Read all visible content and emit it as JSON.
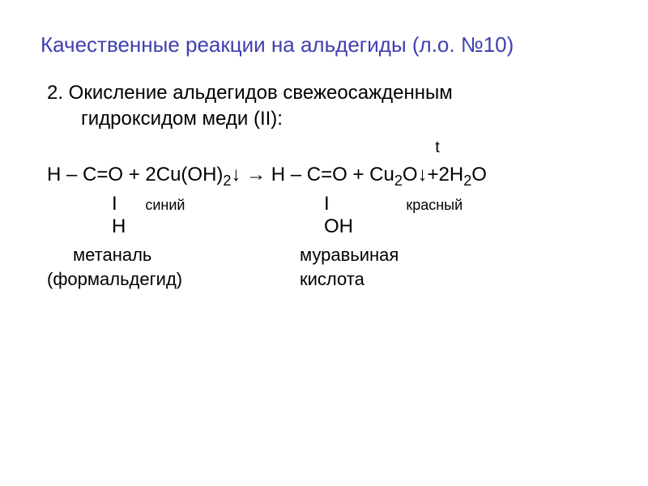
{
  "title": "Качественные реакции на альдегиды (л.о. №10)",
  "subtitle_line1": "2. Окисление альдегидов свежеосажденным",
  "subtitle_line2": "гидроксидом меди (II):",
  "temp_symbol": "t",
  "equation": {
    "reagent1_part1": "H – C=O + 2Cu(OH)",
    "reagent1_sub1": "2",
    "arrow_down1": "↓",
    "arrow": " → ",
    "product1": "H – C=O + Cu",
    "product1_sub1": "2",
    "product1_o": "O",
    "arrow_down2": "↓",
    "plus": "+2H",
    "h2o_sub": "2",
    "h2o_o": "O"
  },
  "structure_row": {
    "bond1": "I",
    "color1": "синий",
    "bond2": "I",
    "color2": "красный"
  },
  "bottom_row": {
    "h": "H",
    "oh": "OH"
  },
  "names": {
    "name1a": "метаналь",
    "name1b": "муравьиная",
    "name2a": "(формальдегид)",
    "name2b": "кислота"
  },
  "colors": {
    "title_color": "#4040b0",
    "text_color": "#000000",
    "background": "#ffffff"
  }
}
